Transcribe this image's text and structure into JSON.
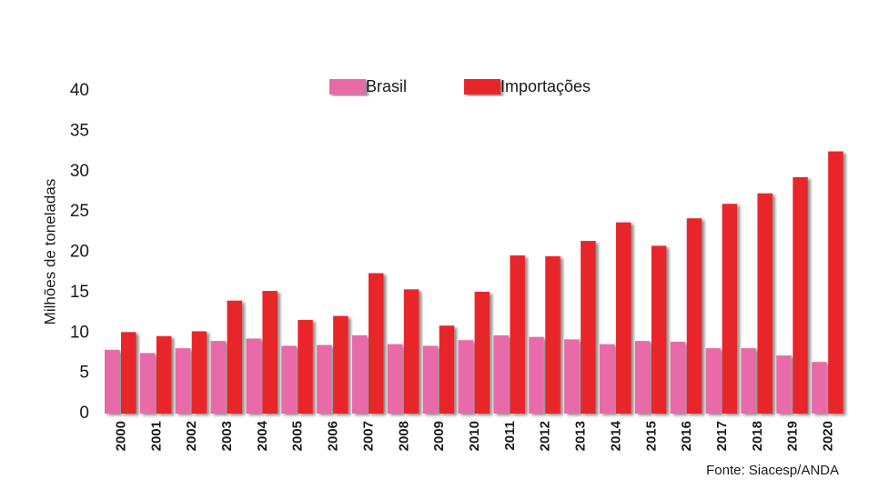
{
  "chart_data": {
    "type": "bar",
    "y_label": "Milhões de toneladas",
    "source": "Fonte: Siacesp/ANDA",
    "categories": [
      "2000",
      "2001",
      "2002",
      "2003",
      "2004",
      "2005",
      "2006",
      "2007",
      "2008",
      "2009",
      "2010",
      "2011",
      "2012",
      "2013",
      "2014",
      "2015",
      "2016",
      "2017",
      "2018",
      "2019",
      "2020"
    ],
    "series": [
      {
        "name": "Brasil",
        "color": "#e96aa9",
        "values": [
          7.9,
          7.5,
          8.1,
          9.0,
          9.3,
          8.4,
          8.5,
          9.7,
          8.6,
          8.4,
          9.1,
          9.7,
          9.5,
          9.2,
          8.6,
          9.0,
          8.9,
          8.1,
          8.1,
          7.2,
          6.4
        ]
      },
      {
        "name": "Importações",
        "color": "#e8262a",
        "values": [
          10.1,
          9.6,
          10.2,
          14.0,
          15.2,
          11.6,
          12.1,
          17.4,
          15.4,
          10.9,
          15.1,
          19.6,
          19.5,
          21.4,
          23.7,
          20.8,
          24.2,
          26.0,
          27.3,
          29.3,
          32.5
        ]
      }
    ],
    "ylim": [
      0,
      40
    ],
    "yticks": [
      0,
      5,
      10,
      15,
      20,
      25,
      30,
      35,
      40
    ],
    "grid": false,
    "legend": "top"
  }
}
